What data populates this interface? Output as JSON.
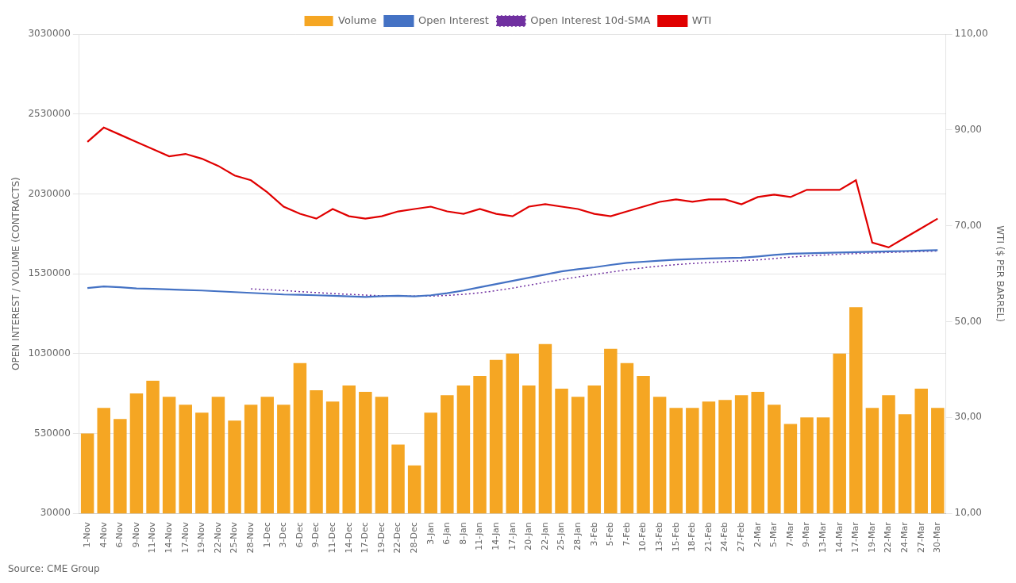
{
  "chart_data": {
    "type": "bar",
    "ylabel": "OPEN INTEREST / VOLUME (CONTRACTS)",
    "y2label": "WTI ($ PER BARREL)",
    "annotations": [
      "Source: CME Group"
    ],
    "categories": [
      "1-Nov",
      "4-Nov",
      "6-Nov",
      "9-Nov",
      "11-Nov",
      "14-Nov",
      "17-Nov",
      "19-Nov",
      "22-Nov",
      "25-Nov",
      "28-Nov",
      "1-Dec",
      "3-Dec",
      "6-Dec",
      "9-Dec",
      "11-Dec",
      "14-Dec",
      "17-Dec",
      "19-Dec",
      "22-Dec",
      "28-Dec",
      "3-Jan",
      "6-Jan",
      "8-Jan",
      "11-Jan",
      "14-Jan",
      "17-Jan",
      "20-Jan",
      "22-Jan",
      "25-Jan",
      "28-Jan",
      "3-Feb",
      "5-Feb",
      "7-Feb",
      "10-Feb",
      "13-Feb",
      "15-Feb",
      "18-Feb",
      "21-Feb",
      "24-Feb",
      "27-Feb",
      "2-Mar",
      "5-Mar",
      "7-Mar",
      "9-Mar",
      "13-Mar",
      "14-Mar",
      "17-Mar",
      "19-Mar",
      "22-Mar",
      "24-Mar",
      "27-Mar",
      "30-Mar"
    ],
    "series": [
      {
        "name": "Volume",
        "type": "bar",
        "color": "#F5A623",
        "values": [
          530000,
          690000,
          620000,
          780000,
          860000,
          760000,
          710000,
          660000,
          760000,
          610000,
          710000,
          760000,
          710000,
          970000,
          800000,
          730000,
          830000,
          790000,
          760000,
          460000,
          330000,
          660000,
          770000,
          830000,
          890000,
          990000,
          1030000,
          830000,
          1090000,
          810000,
          760000,
          830000,
          1060000,
          970000,
          890000,
          760000,
          690000,
          690000,
          730000,
          740000,
          770000,
          790000,
          710000,
          590000,
          630000,
          630000,
          1030000,
          1320000,
          690000,
          770000,
          650000,
          810000,
          690000
        ]
      },
      {
        "name": "Open Interest",
        "type": "line",
        "color": "#4472C4",
        "line_style": "solid",
        "values": [
          1440000,
          1450000,
          1445000,
          1438000,
          1435000,
          1432000,
          1428000,
          1425000,
          1420000,
          1415000,
          1410000,
          1405000,
          1400000,
          1398000,
          1395000,
          1392000,
          1388000,
          1385000,
          1390000,
          1392000,
          1388000,
          1395000,
          1408000,
          1425000,
          1445000,
          1465000,
          1485000,
          1505000,
          1525000,
          1545000,
          1558000,
          1570000,
          1585000,
          1598000,
          1605000,
          1612000,
          1618000,
          1622000,
          1625000,
          1628000,
          1630000,
          1638000,
          1648000,
          1655000,
          1658000,
          1660000,
          1663000,
          1665000,
          1668000,
          1670000,
          1672000,
          1675000,
          1678000
        ]
      },
      {
        "name": "Open Interest 10d-SMA",
        "type": "line",
        "color": "#7030A0",
        "line_style": "dotted",
        "values": [
          null,
          null,
          null,
          null,
          null,
          null,
          null,
          null,
          null,
          null,
          1435000,
          1430000,
          1425000,
          1418000,
          1412000,
          1406000,
          1401000,
          1396000,
          1392000,
          1390000,
          1390000,
          1390000,
          1394000,
          1401000,
          1411000,
          1424000,
          1440000,
          1458000,
          1476000,
          1494000,
          1510000,
          1525000,
          1540000,
          1555000,
          1567000,
          1578000,
          1587000,
          1594000,
          1600000,
          1606000,
          1611000,
          1616000,
          1625000,
          1634000,
          1641000,
          1647000,
          1652000,
          1656000,
          1660000,
          1663000,
          1666000,
          1669000,
          1672000
        ]
      },
      {
        "name": "WTI",
        "type": "line",
        "color": "#E00000",
        "line_style": "solid",
        "axis": "y2",
        "values": [
          87.5,
          90.5,
          89.0,
          87.5,
          86.0,
          84.5,
          85.0,
          84.0,
          82.5,
          80.5,
          79.5,
          77.0,
          74.0,
          72.5,
          71.5,
          73.5,
          72.0,
          71.5,
          72.0,
          73.0,
          73.5,
          74.0,
          73.0,
          72.5,
          73.5,
          72.5,
          72.0,
          74.0,
          74.5,
          74.0,
          73.5,
          72.5,
          72.0,
          73.0,
          74.0,
          75.0,
          75.5,
          75.0,
          75.5,
          75.5,
          74.5,
          76.0,
          76.5,
          76.0,
          77.5,
          77.5,
          77.5,
          79.5,
          66.5,
          65.5,
          67.5,
          69.5,
          71.5
        ]
      }
    ],
    "ylim": [
      30000,
      3030000
    ],
    "yticks": [
      30000,
      530000,
      1030000,
      1530000,
      2030000,
      2530000,
      3030000
    ],
    "y2lim": [
      10.0,
      110.0
    ],
    "y2ticks": [
      {
        "value": 10.0,
        "label": "10,00"
      },
      {
        "value": 30.0,
        "label": "30,00"
      },
      {
        "value": 50.0,
        "label": "50,00"
      },
      {
        "value": 70.0,
        "label": "70,00"
      },
      {
        "value": 90.0,
        "label": "90,00"
      },
      {
        "value": 110.0,
        "label": "110,00"
      }
    ],
    "grid": true,
    "legend": "top"
  }
}
